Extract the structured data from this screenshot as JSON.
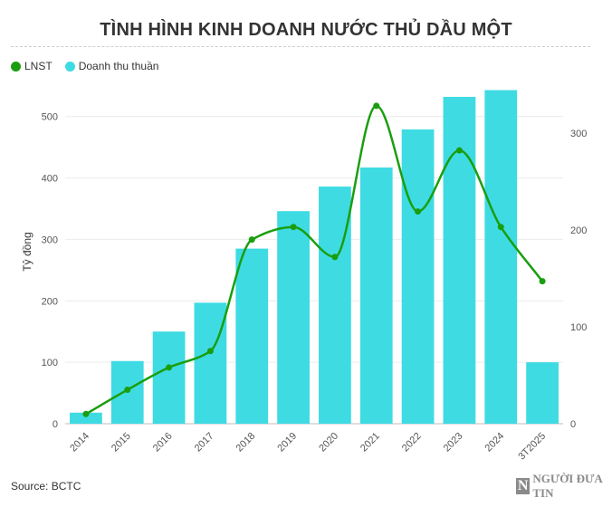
{
  "title": "TÌNH HÌNH KINH DOANH NƯỚC THỦ DẦU MỘT",
  "legend": {
    "items": [
      {
        "label": "LNST",
        "color": "#1a9e0f"
      },
      {
        "label": "Doanh thu thuần",
        "color": "#3edbe3"
      }
    ]
  },
  "source": "Source: BCTC",
  "logo": {
    "letter": "N",
    "text": "NGƯỜI ĐƯA TIN"
  },
  "chart_data": {
    "type": "bar",
    "categories": [
      "2014",
      "2015",
      "2016",
      "2017",
      "2018",
      "2019",
      "2020",
      "2021",
      "2022",
      "2023",
      "2024",
      "3T2025"
    ],
    "series": [
      {
        "name": "Doanh thu thuần",
        "type": "bar",
        "axis": "left",
        "color": "#3edbe3",
        "values": [
          18,
          102,
          150,
          197,
          285,
          346,
          386,
          417,
          479,
          532,
          543,
          100
        ]
      },
      {
        "name": "LNST",
        "type": "line",
        "axis": "right",
        "color": "#1a9e0f",
        "values": [
          10,
          35,
          58,
          75,
          190,
          203,
          172,
          328,
          219,
          282,
          203,
          147
        ]
      }
    ],
    "ylabel": "Tỷ đồng",
    "ylim": [
      0,
      560
    ],
    "y_ticks": [
      0,
      100,
      200,
      300,
      400,
      500
    ],
    "y2lim": [
      0,
      355
    ],
    "y2_ticks": [
      0,
      100,
      200,
      300
    ],
    "grid": true,
    "legend_position": "top-left"
  }
}
